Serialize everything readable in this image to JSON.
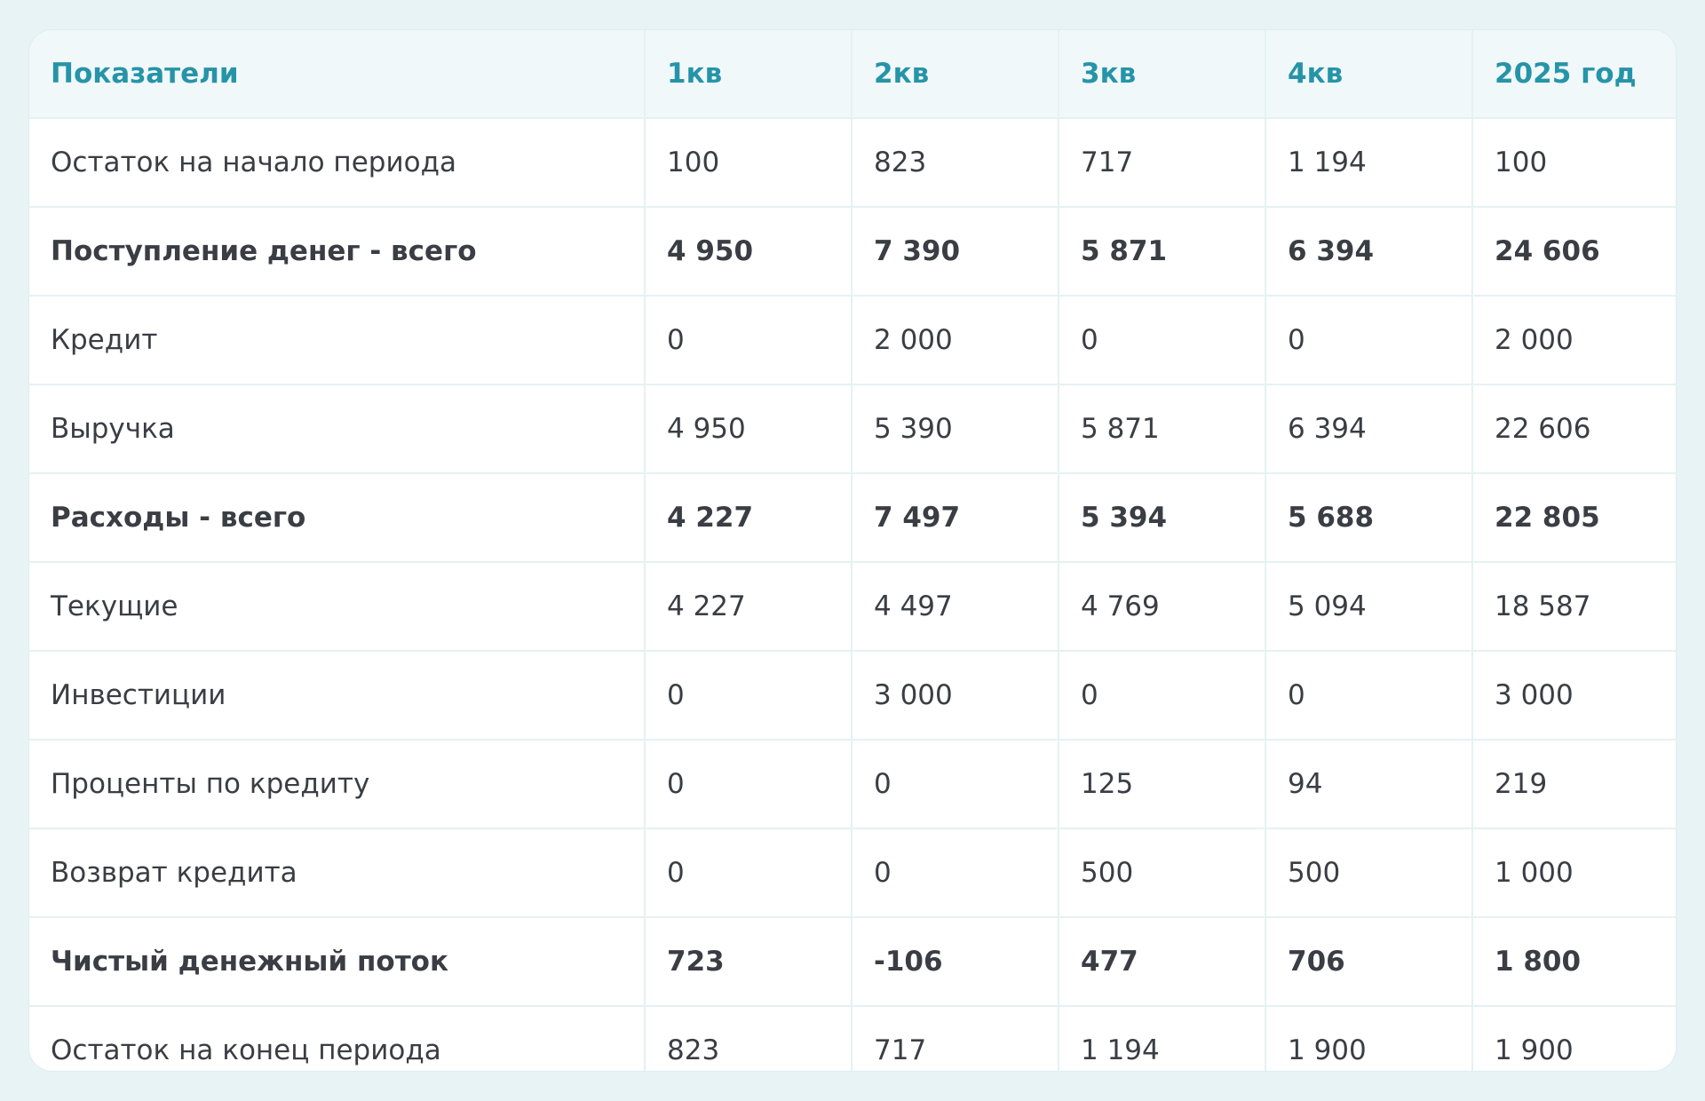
{
  "table": {
    "headers": [
      "Показатели",
      "1кв",
      "2кв",
      "3кв",
      "4кв",
      "2025 год"
    ],
    "rows": [
      {
        "bold": false,
        "cells": [
          "Остаток на начало периода",
          "100",
          "823",
          "717",
          "1 194",
          "100"
        ]
      },
      {
        "bold": true,
        "cells": [
          "Поступление денег - всего",
          "4 950",
          "7 390",
          "5 871",
          "6 394",
          "24 606"
        ]
      },
      {
        "bold": false,
        "cells": [
          "Кредит",
          "0",
          "2 000",
          "0",
          "0",
          "2 000"
        ]
      },
      {
        "bold": false,
        "cells": [
          "Выручка",
          "4 950",
          "5 390",
          "5 871",
          "6 394",
          "22 606"
        ]
      },
      {
        "bold": true,
        "cells": [
          "Расходы - всего",
          "4 227",
          "7 497",
          "5 394",
          "5 688",
          "22 805"
        ]
      },
      {
        "bold": false,
        "cells": [
          "Текущие",
          "4 227",
          "4 497",
          "4 769",
          "5 094",
          "18 587"
        ]
      },
      {
        "bold": false,
        "cells": [
          "Инвестиции",
          "0",
          "3 000",
          "0",
          "0",
          "3 000"
        ]
      },
      {
        "bold": false,
        "cells": [
          "Проценты по кредиту",
          "0",
          "0",
          "125",
          "94",
          "219"
        ]
      },
      {
        "bold": false,
        "cells": [
          "Возврат кредита",
          "0",
          "0",
          "500",
          "500",
          "1 000"
        ]
      },
      {
        "bold": true,
        "cells": [
          "Чистый денежный поток",
          "723",
          "-106",
          "477",
          "706",
          "1 800"
        ]
      },
      {
        "bold": false,
        "cells": [
          "Остаток на конец периода",
          "823",
          "717",
          "1 194",
          "1 900",
          "1 900"
        ]
      }
    ]
  }
}
